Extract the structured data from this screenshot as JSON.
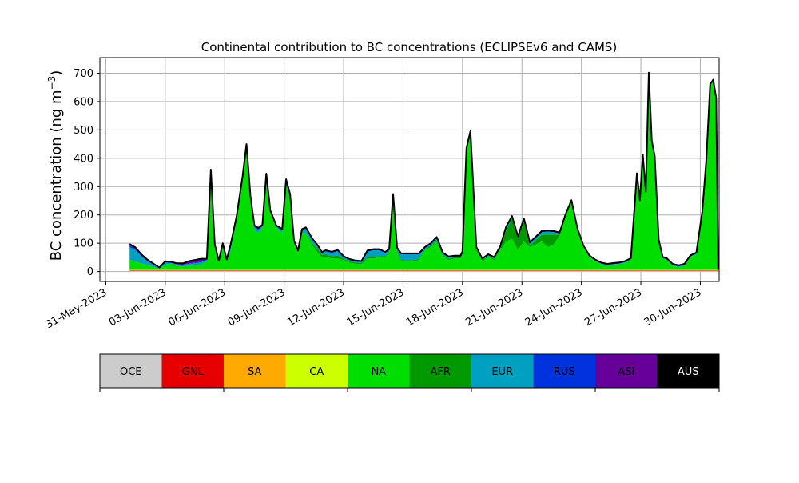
{
  "chart_data": {
    "type": "area",
    "title": "Continental contribution to BC concentrations (ECLIPSEv6 and CAMS)",
    "xlabel": "",
    "ylabel_main": "BC concentration (ng m",
    "ylabel_sup": "−3",
    "ylabel_close": ")",
    "xlim": [
      -0.3,
      30.95
    ],
    "ylim": [
      -35,
      755
    ],
    "grid": true,
    "x_ticks": [
      {
        "day": 0,
        "label": "31-May-2023"
      },
      {
        "day": 3,
        "label": "03-Jun-2023"
      },
      {
        "day": 6,
        "label": "06-Jun-2023"
      },
      {
        "day": 9,
        "label": "09-Jun-2023"
      },
      {
        "day": 12,
        "label": "12-Jun-2023"
      },
      {
        "day": 15,
        "label": "15-Jun-2023"
      },
      {
        "day": 18,
        "label": "18-Jun-2023"
      },
      {
        "day": 21,
        "label": "21-Jun-2023"
      },
      {
        "day": 24,
        "label": "24-Jun-2023"
      },
      {
        "day": 27,
        "label": "27-Jun-2023"
      },
      {
        "day": 30,
        "label": "30-Jun-2023"
      }
    ],
    "y_ticks": [
      0,
      100,
      200,
      300,
      400,
      500,
      600,
      700
    ],
    "legend": [
      {
        "name": "OCE",
        "color": "#cccccc"
      },
      {
        "name": "GNL",
        "color": "#e60000"
      },
      {
        "name": "SA",
        "color": "#ffaa00"
      },
      {
        "name": "CA",
        "color": "#ccff00"
      },
      {
        "name": "NA",
        "color": "#00dd00"
      },
      {
        "name": "AFR",
        "color": "#009900"
      },
      {
        "name": "EUR",
        "color": "#00a0c0"
      },
      {
        "name": "RUS",
        "color": "#0033dd"
      },
      {
        "name": "ASI",
        "color": "#660099"
      },
      {
        "name": "AUS",
        "color": "#000000"
      }
    ],
    "series_x_days": [
      1.2,
      1.5,
      1.8,
      2.1,
      2.4,
      2.7,
      3.0,
      3.3,
      3.6,
      3.9,
      4.2,
      4.5,
      4.8,
      5.1,
      5.3,
      5.5,
      5.7,
      5.9,
      6.1,
      6.3,
      6.6,
      6.9,
      7.1,
      7.3,
      7.5,
      7.7,
      7.9,
      8.1,
      8.3,
      8.6,
      8.9,
      9.1,
      9.3,
      9.5,
      9.7,
      9.9,
      10.1,
      10.4,
      10.7,
      10.9,
      11.1,
      11.4,
      11.7,
      12.0,
      12.3,
      12.6,
      12.9,
      13.2,
      13.5,
      13.8,
      14.1,
      14.3,
      14.5,
      14.7,
      14.9,
      15.2,
      15.5,
      15.8,
      16.1,
      16.4,
      16.7,
      17.0,
      17.3,
      17.6,
      17.9,
      18.0,
      18.2,
      18.4,
      18.7,
      19.0,
      19.3,
      19.6,
      19.9,
      20.2,
      20.5,
      20.8,
      21.1,
      21.4,
      21.7,
      22.0,
      22.3,
      22.6,
      22.9,
      23.2,
      23.5,
      23.8,
      24.1,
      24.4,
      24.7,
      25.0,
      25.3,
      25.6,
      25.9,
      26.2,
      26.5,
      26.8,
      26.95,
      27.1,
      27.25,
      27.4,
      27.55,
      27.7,
      27.9,
      28.1,
      28.3,
      28.6,
      28.9,
      29.2,
      29.5,
      29.8,
      30.1,
      30.3,
      30.5,
      30.65,
      30.8,
      30.9
    ],
    "series": [
      {
        "name": "OCE",
        "values": [
          2,
          2,
          2,
          2,
          2,
          2,
          2,
          2,
          2,
          2,
          2,
          2,
          2,
          2,
          2,
          2,
          2,
          2,
          2,
          2,
          2,
          2,
          2,
          2,
          2,
          2,
          2,
          2,
          2,
          2,
          2,
          2,
          2,
          2,
          2,
          2,
          2,
          2,
          2,
          2,
          2,
          2,
          2,
          2,
          2,
          2,
          2,
          2,
          2,
          2,
          2,
          2,
          2,
          2,
          2,
          2,
          2,
          2,
          2,
          2,
          2,
          2,
          2,
          2,
          2,
          2,
          2,
          2,
          2,
          2,
          2,
          2,
          2,
          2,
          2,
          2,
          2,
          2,
          2,
          2,
          2,
          2,
          2,
          2,
          2,
          2,
          2,
          2,
          2,
          2,
          2,
          2,
          2,
          2,
          2,
          2,
          2,
          2,
          2,
          2,
          2,
          2,
          2,
          2,
          2,
          2,
          2,
          2,
          2,
          2,
          2,
          2,
          2,
          2,
          2,
          2
        ]
      },
      {
        "name": "GNL",
        "values": [
          1,
          1,
          1,
          1,
          1,
          1,
          1,
          1,
          1,
          1,
          1,
          1,
          1,
          1,
          1,
          1,
          1,
          1,
          1,
          1,
          1,
          1,
          1,
          1,
          1,
          1,
          1,
          1,
          1,
          1,
          1,
          1,
          1,
          1,
          1,
          1,
          1,
          1,
          1,
          1,
          1,
          1,
          1,
          1,
          1,
          1,
          1,
          1,
          1,
          1,
          1,
          1,
          1,
          1,
          1,
          1,
          1,
          1,
          1,
          1,
          1,
          1,
          1,
          1,
          1,
          1,
          1,
          1,
          1,
          1,
          1,
          1,
          1,
          1,
          1,
          1,
          1,
          1,
          1,
          1,
          1,
          1,
          1,
          1,
          1,
          1,
          1,
          1,
          1,
          1,
          1,
          1,
          1,
          1,
          1,
          1,
          1,
          1,
          1,
          1,
          1,
          1,
          1,
          1,
          1,
          1,
          1,
          1,
          1,
          1,
          1,
          1,
          1,
          1,
          1,
          1
        ]
      },
      {
        "name": "SA",
        "values": [
          2,
          2,
          2,
          2,
          2,
          2,
          2,
          2,
          2,
          2,
          2,
          2,
          2,
          2,
          2,
          2,
          2,
          2,
          2,
          2,
          2,
          2,
          2,
          2,
          2,
          2,
          2,
          2,
          2,
          2,
          2,
          2,
          2,
          2,
          2,
          2,
          2,
          2,
          2,
          2,
          2,
          2,
          2,
          2,
          2,
          2,
          2,
          2,
          2,
          2,
          2,
          2,
          2,
          2,
          2,
          2,
          2,
          2,
          2,
          2,
          2,
          2,
          2,
          2,
          2,
          2,
          2,
          2,
          2,
          2,
          2,
          2,
          2,
          2,
          2,
          2,
          2,
          2,
          2,
          2,
          2,
          2,
          2,
          2,
          2,
          2,
          2,
          2,
          2,
          2,
          2,
          2,
          2,
          2,
          2,
          2,
          2,
          2,
          2,
          2,
          2,
          2,
          2,
          2,
          2,
          2,
          2,
          2,
          2,
          2,
          2,
          2,
          2,
          2,
          2,
          2
        ]
      },
      {
        "name": "CA",
        "values": [
          1,
          1,
          1,
          1,
          1,
          1,
          1,
          1,
          1,
          1,
          1,
          1,
          1,
          1,
          1,
          1,
          1,
          1,
          1,
          1,
          1,
          1,
          1,
          1,
          1,
          1,
          1,
          1,
          1,
          1,
          1,
          1,
          1,
          1,
          1,
          1,
          1,
          1,
          1,
          1,
          1,
          1,
          1,
          1,
          1,
          1,
          1,
          1,
          1,
          1,
          1,
          1,
          1,
          1,
          1,
          1,
          1,
          1,
          1,
          1,
          1,
          1,
          1,
          1,
          1,
          1,
          1,
          1,
          1,
          1,
          1,
          1,
          1,
          1,
          1,
          1,
          1,
          1,
          1,
          1,
          1,
          1,
          1,
          1,
          1,
          1,
          1,
          1,
          1,
          1,
          1,
          1,
          1,
          1,
          1,
          1,
          1,
          1,
          1,
          1,
          1,
          1,
          1,
          1,
          1,
          1,
          1,
          1,
          1,
          1,
          1,
          1,
          1,
          1,
          1,
          1
        ]
      },
      {
        "name": "NA",
        "values": [
          35,
          30,
          22,
          18,
          10,
          4,
          18,
          22,
          14,
          12,
          14,
          16,
          18,
          30,
          344,
          80,
          25,
          80,
          28,
          70,
          180,
          320,
          430,
          250,
          140,
          130,
          150,
          330,
          200,
          150,
          130,
          300,
          250,
          90,
          60,
          130,
          130,
          90,
          60,
          45,
          45,
          40,
          40,
          35,
          26,
          22,
          20,
          40,
          40,
          45,
          45,
          60,
          255,
          60,
          30,
          30,
          30,
          35,
          70,
          80,
          100,
          50,
          35,
          40,
          40,
          55,
          420,
          480,
          70,
          30,
          45,
          35,
          70,
          100,
          110,
          70,
          100,
          80,
          90,
          100,
          80,
          90,
          120,
          190,
          240,
          140,
          80,
          45,
          30,
          20,
          15,
          18,
          20,
          25,
          35,
          335,
          240,
          400,
          270,
          690,
          450,
          395,
          100,
          40,
          35,
          15,
          10,
          15,
          45,
          55,
          200,
          380,
          650,
          665,
          600,
          0
        ]
      },
      {
        "name": "AFR",
        "values": [
          0,
          0,
          0,
          0,
          0,
          0,
          0,
          0,
          0,
          0,
          0,
          0,
          0,
          0,
          0,
          0,
          0,
          0,
          0,
          0,
          0,
          0,
          0,
          0,
          0,
          0,
          0,
          0,
          0,
          0,
          0,
          0,
          0,
          0,
          0,
          0,
          0,
          5,
          12,
          8,
          10,
          8,
          10,
          4,
          4,
          4,
          4,
          4,
          4,
          4,
          4,
          4,
          4,
          4,
          4,
          4,
          4,
          4,
          4,
          4,
          4,
          4,
          4,
          4,
          4,
          4,
          4,
          4,
          4,
          4,
          4,
          4,
          4,
          40,
          70,
          40,
          70,
          5,
          15,
          25,
          45,
          35,
          5,
          0,
          0,
          0,
          0,
          0,
          0,
          0,
          0,
          0,
          0,
          0,
          0,
          0,
          0,
          0,
          0,
          0,
          0,
          0,
          0,
          0,
          0,
          0,
          0,
          0,
          0,
          0,
          0,
          0,
          0,
          0,
          0,
          0
        ]
      },
      {
        "name": "EUR",
        "values": [
          45,
          40,
          25,
          12,
          8,
          2,
          8,
          3,
          4,
          5,
          7,
          7,
          9,
          4,
          5,
          5,
          4,
          8,
          5,
          15,
          4,
          5,
          8,
          5,
          10,
          10,
          4,
          5,
          5,
          3,
          9,
          15,
          12,
          8,
          4,
          9,
          15,
          12,
          10,
          6,
          10,
          12,
          16,
          5,
          4,
          3,
          3,
          20,
          25,
          20,
          10,
          5,
          5,
          10,
          20,
          20,
          20,
          15,
          2,
          6,
          8,
          3,
          4,
          2,
          2,
          2,
          2,
          2,
          2,
          2,
          2,
          2,
          4,
          8,
          6,
          4,
          8,
          8,
          8,
          8,
          10,
          8,
          3,
          2,
          2,
          2,
          2,
          2,
          2,
          2,
          2,
          2,
          2,
          2,
          2,
          2,
          2,
          2,
          2,
          2,
          2,
          2,
          2,
          2,
          2,
          2,
          2,
          2,
          2,
          2,
          2,
          2,
          2,
          2,
          2,
          0
        ]
      },
      {
        "name": "RUS",
        "values": [
          5,
          4,
          3,
          3,
          2,
          1,
          2,
          1,
          1,
          1,
          2,
          2,
          2,
          2,
          2,
          2,
          1,
          2,
          1,
          2,
          2,
          2,
          2,
          2,
          3,
          3,
          2,
          2,
          2,
          2,
          2,
          2,
          2,
          2,
          2,
          2,
          2,
          2,
          2,
          2,
          2,
          2,
          2,
          2,
          2,
          2,
          2,
          2,
          2,
          2,
          2,
          2,
          2,
          2,
          2,
          2,
          2,
          2,
          2,
          2,
          2,
          2,
          2,
          2,
          2,
          2,
          2,
          2,
          2,
          2,
          2,
          2,
          2,
          2,
          2,
          2,
          2,
          2,
          2,
          2,
          2,
          2,
          2,
          2,
          2,
          2,
          2,
          2,
          2,
          2,
          2,
          2,
          2,
          2,
          2,
          2,
          2,
          2,
          2,
          2,
          2,
          2,
          2,
          2,
          2,
          2,
          2,
          2,
          2,
          2,
          2,
          2,
          2,
          2,
          2,
          0
        ]
      },
      {
        "name": "ASI",
        "values": [
          6,
          5,
          4,
          3,
          2,
          1,
          2,
          2,
          4,
          5,
          8,
          10,
          10,
          3,
          3,
          3,
          2,
          4,
          2,
          3,
          3,
          3,
          4,
          3,
          4,
          5,
          3,
          3,
          3,
          2,
          3,
          3,
          3,
          3,
          2,
          3,
          3,
          3,
          2,
          2,
          2,
          2,
          2,
          2,
          2,
          2,
          2,
          2,
          2,
          2,
          2,
          2,
          2,
          2,
          2,
          2,
          2,
          2,
          2,
          2,
          2,
          2,
          2,
          2,
          2,
          2,
          2,
          2,
          2,
          2,
          2,
          2,
          2,
          2,
          2,
          2,
          2,
          2,
          2,
          2,
          2,
          2,
          2,
          2,
          2,
          2,
          2,
          2,
          2,
          2,
          2,
          2,
          2,
          2,
          2,
          2,
          2,
          2,
          2,
          2,
          2,
          2,
          2,
          2,
          2,
          2,
          2,
          2,
          2,
          2,
          2,
          2,
          2,
          2,
          2,
          0
        ]
      },
      {
        "name": "AUS",
        "values": [
          0,
          0,
          0,
          0,
          0,
          0,
          0,
          0,
          0,
          0,
          0,
          0,
          0,
          0,
          0,
          0,
          0,
          0,
          0,
          0,
          0,
          0,
          0,
          0,
          0,
          0,
          0,
          0,
          0,
          0,
          0,
          0,
          0,
          0,
          0,
          0,
          0,
          0,
          0,
          0,
          0,
          0,
          0,
          0,
          0,
          0,
          0,
          0,
          0,
          0,
          0,
          0,
          0,
          0,
          0,
          0,
          0,
          0,
          0,
          0,
          0,
          0,
          0,
          0,
          0,
          0,
          0,
          0,
          0,
          0,
          0,
          0,
          0,
          0,
          0,
          0,
          0,
          0,
          0,
          0,
          0,
          0,
          0,
          0,
          0,
          0,
          0,
          0,
          0,
          0,
          0,
          0,
          0,
          0,
          0,
          0,
          0,
          0,
          0,
          0,
          0,
          0,
          0,
          0,
          0,
          0,
          0,
          0,
          0,
          0,
          0,
          0,
          0,
          0,
          0,
          0
        ]
      }
    ]
  }
}
